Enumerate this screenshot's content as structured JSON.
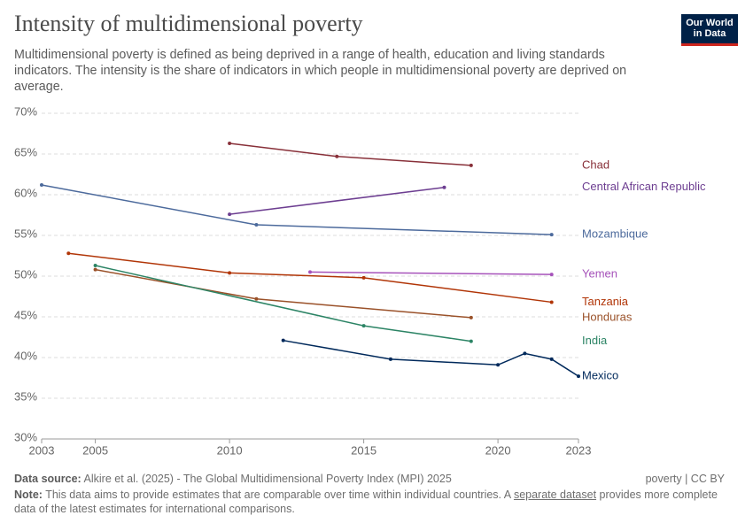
{
  "logo": {
    "line1": "Our World",
    "line2": "in Data"
  },
  "chart_data": {
    "type": "line",
    "title": "Intensity of multidimensional poverty",
    "subtitle": "Multidimensional poverty is defined as being deprived in a range of health, education and living standards indicators. The intensity is the share of indicators in which people in multidimensional poverty are deprived on average.",
    "xlim": [
      2003,
      2023
    ],
    "xticks": [
      2003,
      2005,
      2010,
      2015,
      2020,
      2023
    ],
    "ylim": [
      30,
      70
    ],
    "yticks": [
      {
        "value": 30,
        "label": "30%"
      },
      {
        "value": 35,
        "label": "35%"
      },
      {
        "value": 40,
        "label": "40%"
      },
      {
        "value": 45,
        "label": "45%"
      },
      {
        "value": 50,
        "label": "50%"
      },
      {
        "value": 55,
        "label": "55%"
      },
      {
        "value": 60,
        "label": "60%"
      },
      {
        "value": 65,
        "label": "65%"
      },
      {
        "value": 70,
        "label": "70%"
      }
    ],
    "grid": true,
    "series": [
      {
        "name": "Chad",
        "color": "#883039",
        "x": [
          2010,
          2014,
          2019
        ],
        "values": [
          66.3,
          64.7,
          63.6
        ]
      },
      {
        "name": "Central African Republic",
        "color": "#6d3e91",
        "x": [
          2010,
          2018
        ],
        "values": [
          57.6,
          60.9
        ]
      },
      {
        "name": "Mozambique",
        "color": "#4c6a9c",
        "x": [
          2003,
          2011,
          2022
        ],
        "values": [
          61.2,
          56.3,
          55.1
        ]
      },
      {
        "name": "Yemen",
        "color": "#a652ba",
        "x": [
          2013,
          2022
        ],
        "values": [
          50.5,
          50.2
        ]
      },
      {
        "name": "Tanzania",
        "color": "#b13507",
        "x": [
          2004,
          2010,
          2015,
          2022
        ],
        "values": [
          52.8,
          50.4,
          49.8,
          46.8
        ]
      },
      {
        "name": "Honduras",
        "color": "#9a5129",
        "x": [
          2005,
          2011,
          2019
        ],
        "values": [
          50.8,
          47.2,
          44.9
        ]
      },
      {
        "name": "India",
        "color": "#2c8465",
        "x": [
          2005,
          2015,
          2019
        ],
        "values": [
          51.3,
          43.9,
          42.0
        ]
      },
      {
        "name": "Mexico",
        "color": "#00295b",
        "x": [
          2012,
          2016,
          2020,
          2021,
          2022,
          2023
        ],
        "values": [
          42.1,
          39.8,
          39.1,
          40.5,
          39.8,
          37.7
        ]
      }
    ],
    "source_label": "Data source:",
    "source": "Alkire et al. (2025) - The Global Multidimensional Poverty Index (MPI) 2025",
    "license": "poverty | CC BY",
    "note_label": "Note:",
    "note_parts": [
      "This data aims to provide estimates that are comparable over time within individual countries. A ",
      "separate dataset",
      " provides more complete data of the latest estimates for international comparisons."
    ]
  }
}
